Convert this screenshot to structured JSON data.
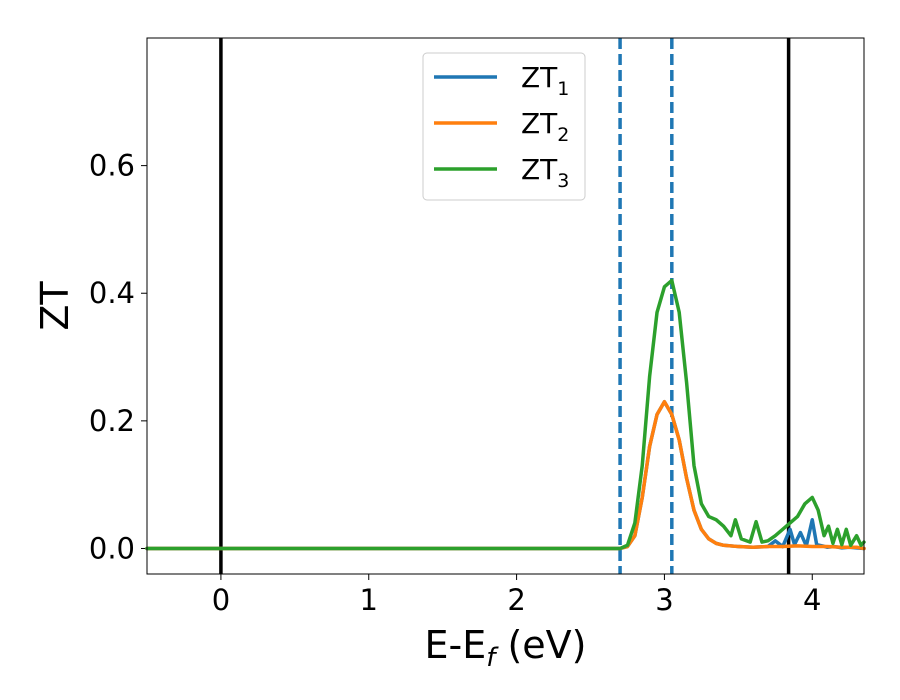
{
  "chart_data": {
    "type": "line",
    "xlabel": {
      "main": "E-E",
      "sub": "f",
      "unit": " (eV)"
    },
    "ylabel": "ZT",
    "xlim": [
      -0.5,
      4.35
    ],
    "ylim": [
      -0.04,
      0.8
    ],
    "xticks": [
      0,
      1,
      2,
      3,
      4
    ],
    "yticks": [
      0.0,
      0.2,
      0.4,
      0.6
    ],
    "xtick_labels": [
      "0",
      "1",
      "2",
      "3",
      "4"
    ],
    "ytick_labels": [
      "0.0",
      "0.2",
      "0.4",
      "0.6"
    ],
    "grid": false,
    "legend_position": "top-center",
    "solid_vlines": [
      0.0,
      3.84
    ],
    "dashed_vlines": [
      2.7,
      3.05
    ],
    "dashed_color": "#1f77b4",
    "series": [
      {
        "name": "ZT",
        "sub": "1",
        "color": "#1f77b4",
        "x": [
          -0.5,
          2.7,
          2.75,
          2.8,
          2.85,
          2.9,
          2.95,
          3.0,
          3.05,
          3.1,
          3.15,
          3.2,
          3.25,
          3.3,
          3.35,
          3.4,
          3.5,
          3.6,
          3.7,
          3.75,
          3.8,
          3.85,
          3.88,
          3.92,
          3.96,
          4.0,
          4.03,
          4.07,
          4.1,
          4.15,
          4.2,
          4.25,
          4.3,
          4.35
        ],
        "y": [
          0.0,
          0.0,
          0.003,
          0.02,
          0.08,
          0.16,
          0.21,
          0.23,
          0.21,
          0.17,
          0.11,
          0.06,
          0.03,
          0.015,
          0.008,
          0.005,
          0.003,
          0.002,
          0.003,
          0.012,
          0.003,
          0.03,
          0.006,
          0.025,
          0.004,
          0.045,
          0.006,
          0.004,
          0.002,
          0.003,
          0.001,
          0.002,
          0.001,
          0.0
        ]
      },
      {
        "name": "ZT",
        "sub": "2",
        "color": "#ff7f0e",
        "x": [
          -0.5,
          2.7,
          2.75,
          2.8,
          2.85,
          2.9,
          2.95,
          3.0,
          3.05,
          3.1,
          3.15,
          3.2,
          3.25,
          3.3,
          3.35,
          3.4,
          3.5,
          3.6,
          3.7,
          3.8,
          3.9,
          4.0,
          4.1,
          4.2,
          4.3,
          4.35
        ],
        "y": [
          0.0,
          0.0,
          0.003,
          0.02,
          0.08,
          0.16,
          0.21,
          0.23,
          0.21,
          0.17,
          0.11,
          0.06,
          0.03,
          0.015,
          0.008,
          0.005,
          0.003,
          0.002,
          0.003,
          0.003,
          0.004,
          0.003,
          0.003,
          0.002,
          0.002,
          0.0
        ]
      },
      {
        "name": "ZT",
        "sub": "3",
        "color": "#2ca02c",
        "x": [
          -0.5,
          2.7,
          2.75,
          2.8,
          2.85,
          2.9,
          2.95,
          3.0,
          3.05,
          3.1,
          3.15,
          3.2,
          3.25,
          3.3,
          3.35,
          3.4,
          3.45,
          3.48,
          3.52,
          3.58,
          3.62,
          3.66,
          3.7,
          3.75,
          3.8,
          3.85,
          3.9,
          3.95,
          4.0,
          4.04,
          4.08,
          4.11,
          4.14,
          4.17,
          4.2,
          4.23,
          4.26,
          4.3,
          4.33,
          4.35
        ],
        "y": [
          0.0,
          0.0,
          0.005,
          0.04,
          0.13,
          0.27,
          0.37,
          0.41,
          0.42,
          0.37,
          0.26,
          0.13,
          0.07,
          0.05,
          0.045,
          0.035,
          0.02,
          0.045,
          0.015,
          0.01,
          0.042,
          0.01,
          0.012,
          0.02,
          0.03,
          0.04,
          0.05,
          0.07,
          0.08,
          0.06,
          0.02,
          0.035,
          0.008,
          0.03,
          0.006,
          0.03,
          0.005,
          0.02,
          0.005,
          0.01
        ]
      }
    ]
  }
}
